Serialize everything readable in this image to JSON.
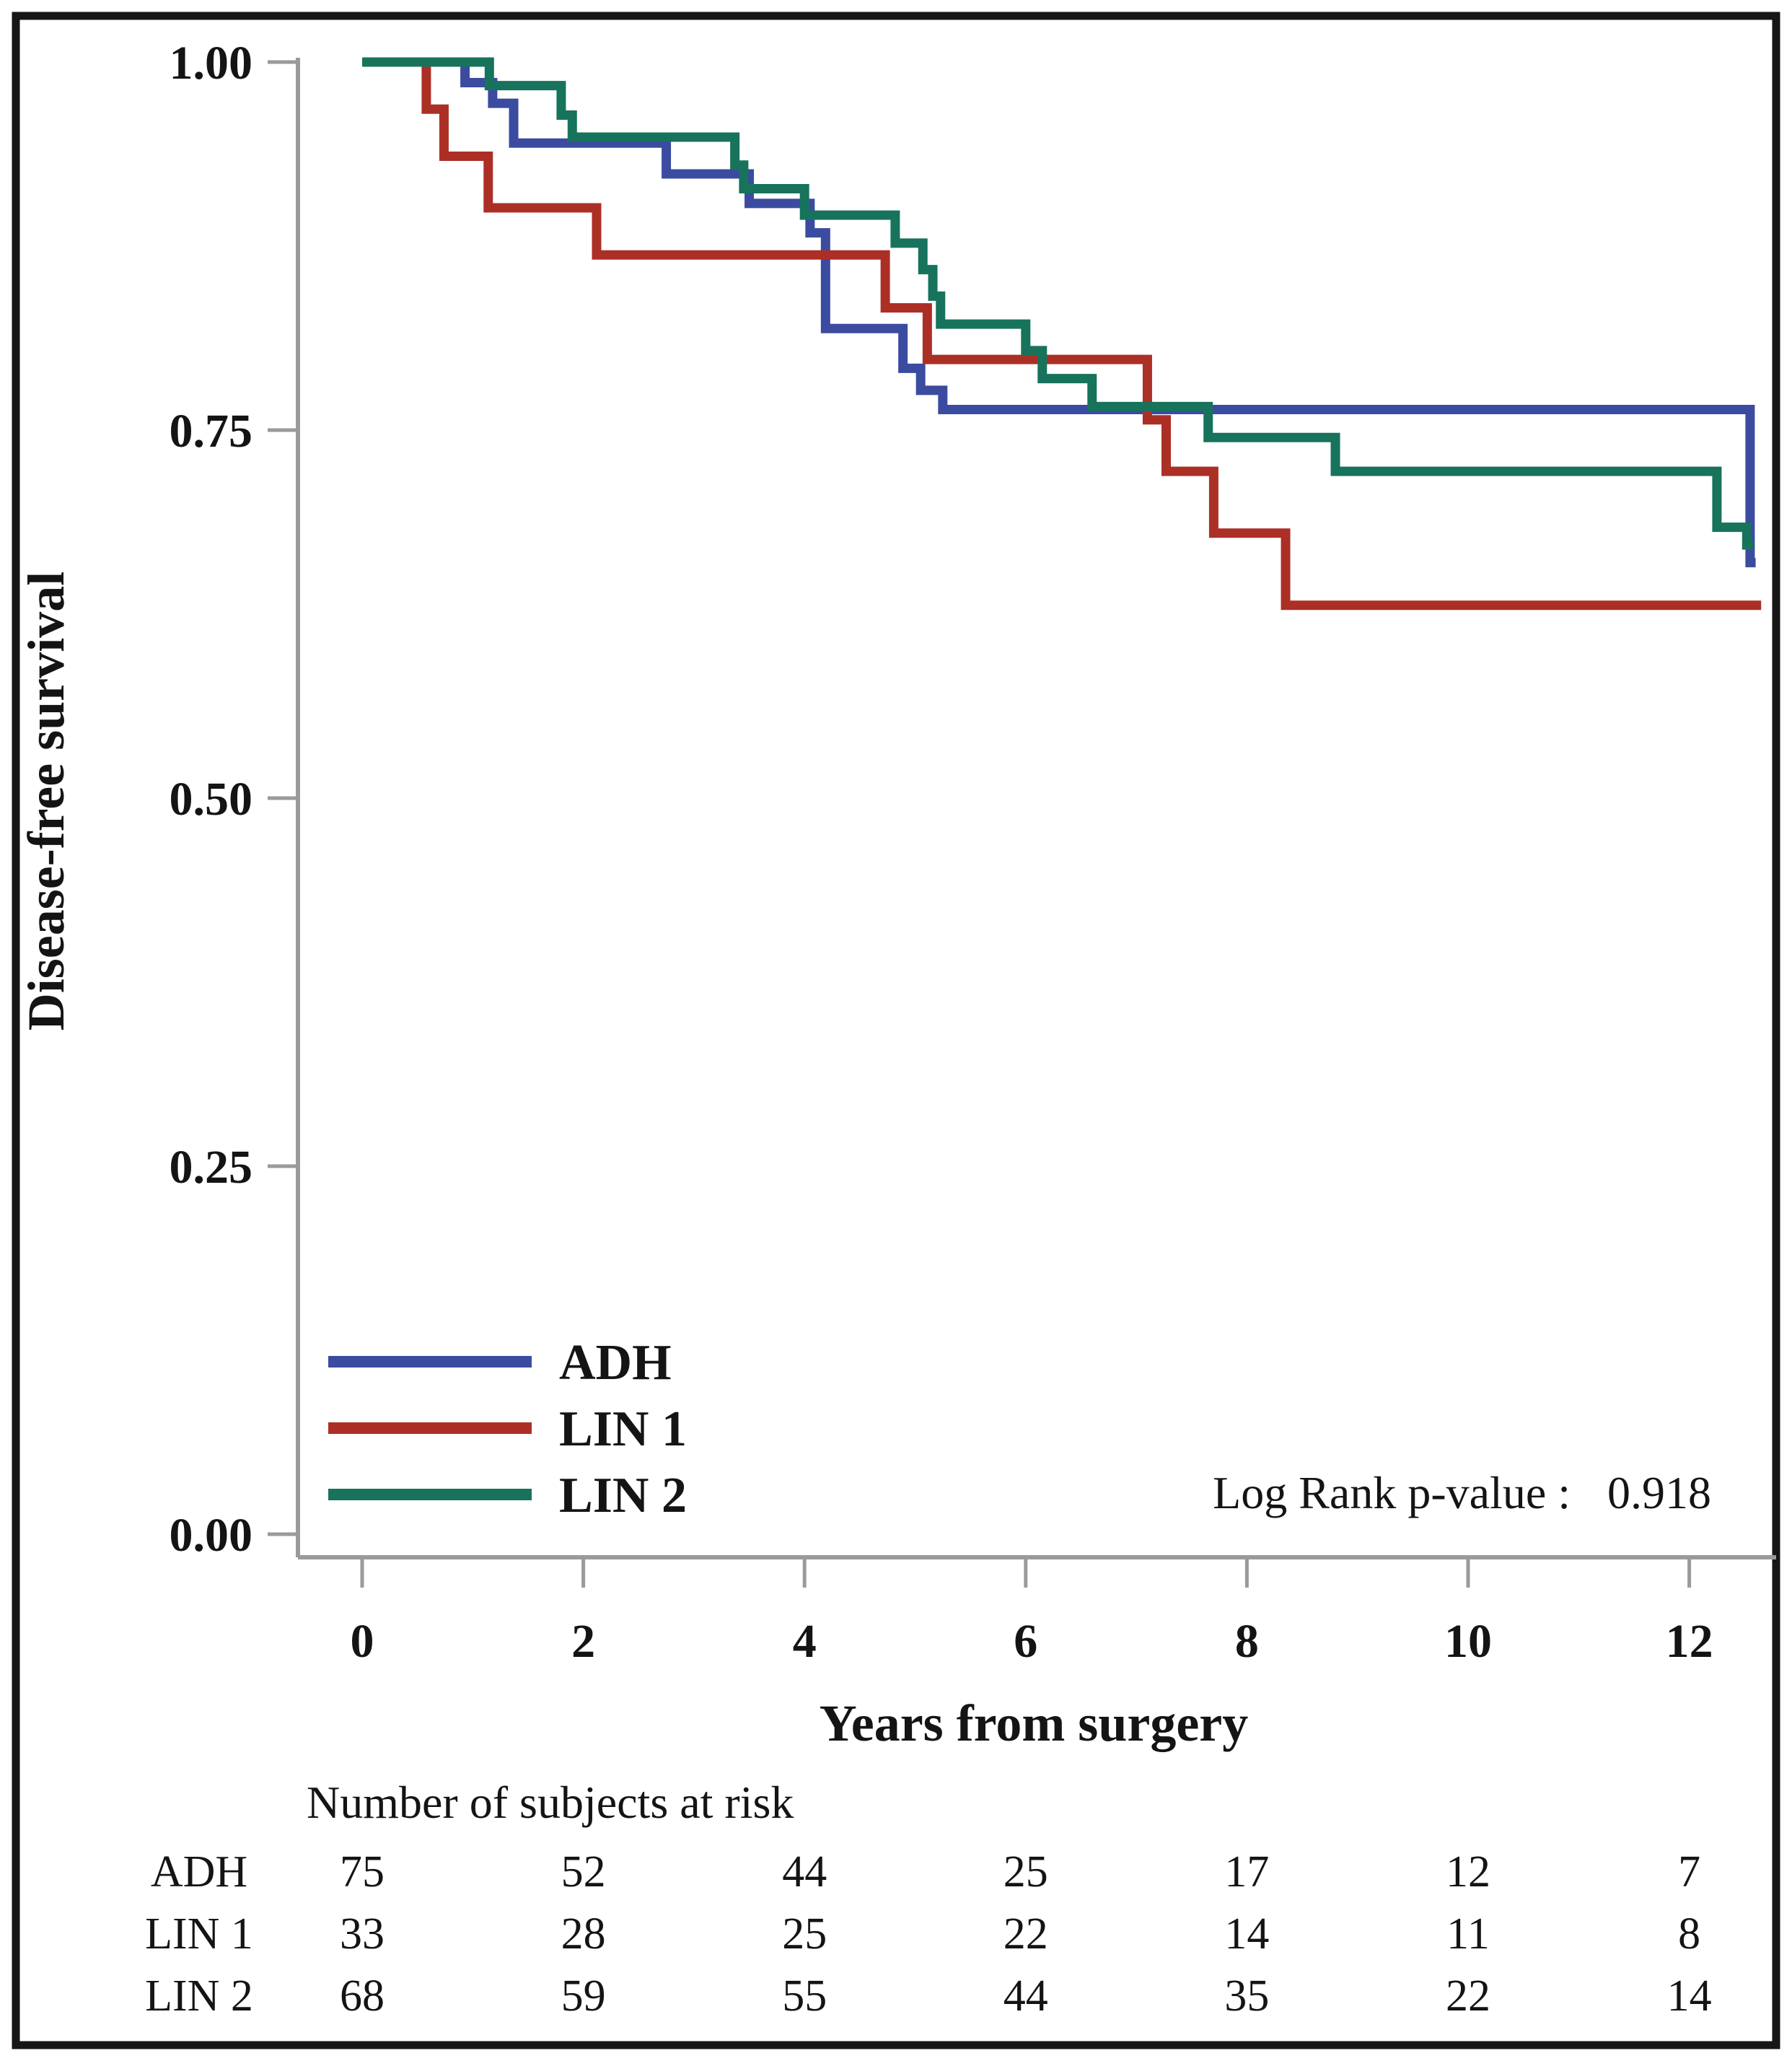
{
  "figure": {
    "background": "#ffffff",
    "frame_color": "#161616"
  },
  "chart_data": {
    "type": "line",
    "variant": "kaplan-meier-step",
    "title": "",
    "xlabel": "Years from surgery",
    "ylabel": "Disease-free survival",
    "x_ticks": [
      "0",
      "2",
      "4",
      "6",
      "8",
      "10",
      "12"
    ],
    "x_tick_values": [
      0,
      2,
      4,
      6,
      8,
      10,
      12
    ],
    "y_ticks": [
      "1.00",
      "0.75",
      "0.50",
      "0.25",
      "0.00"
    ],
    "y_tick_values": [
      1.0,
      0.75,
      0.5,
      0.25,
      0.0
    ],
    "xlim": [
      0,
      12.78
    ],
    "ylim": [
      0,
      1.02
    ],
    "grid": false,
    "legend_position": "inside bottom-left",
    "axis_color": "#9a9a9a",
    "text_color": "#141414",
    "annotation": {
      "label": "Log Rank p-value :",
      "value": "0.918"
    },
    "series": [
      {
        "name": "ADH",
        "color": "#3B4BA0",
        "end_time": 12.6,
        "steps": [
          [
            0,
            1.0
          ],
          [
            0.93,
            0.986
          ],
          [
            1.18,
            0.972
          ],
          [
            1.37,
            0.945
          ],
          [
            2.75,
            0.924
          ],
          [
            3.5,
            0.904
          ],
          [
            4.05,
            0.884
          ],
          [
            4.19,
            0.819
          ],
          [
            4.89,
            0.792
          ],
          [
            5.05,
            0.777
          ],
          [
            5.25,
            0.764
          ],
          [
            12.55,
            0.66
          ]
        ]
      },
      {
        "name": "LIN 1",
        "color": "#AC2F26",
        "end_time": 12.65,
        "steps": [
          [
            0,
            1.0
          ],
          [
            0.58,
            0.968
          ],
          [
            0.74,
            0.936
          ],
          [
            1.14,
            0.901
          ],
          [
            2.12,
            0.869
          ],
          [
            4.73,
            0.833
          ],
          [
            5.11,
            0.798
          ],
          [
            7.1,
            0.757
          ],
          [
            7.27,
            0.722
          ],
          [
            7.7,
            0.68
          ],
          [
            8.35,
            0.631
          ]
        ]
      },
      {
        "name": "LIN 2",
        "color": "#17735B",
        "end_time": 12.58,
        "steps": [
          [
            0,
            1.0
          ],
          [
            1.15,
            0.984
          ],
          [
            1.8,
            0.964
          ],
          [
            1.9,
            0.949
          ],
          [
            3.37,
            0.93
          ],
          [
            3.45,
            0.914
          ],
          [
            4.0,
            0.896
          ],
          [
            4.82,
            0.877
          ],
          [
            5.07,
            0.859
          ],
          [
            5.16,
            0.841
          ],
          [
            5.23,
            0.822
          ],
          [
            6.0,
            0.804
          ],
          [
            6.15,
            0.785
          ],
          [
            6.6,
            0.766
          ],
          [
            7.65,
            0.745
          ],
          [
            8.8,
            0.722
          ],
          [
            12.25,
            0.684
          ],
          [
            12.52,
            0.672
          ]
        ]
      }
    ],
    "risk_table": {
      "title": "Number of subjects at risk",
      "times": [
        0,
        2,
        4,
        6,
        8,
        10,
        12
      ],
      "rows": [
        {
          "label": "ADH",
          "counts": [
            "75",
            "52",
            "44",
            "25",
            "17",
            "12",
            "7"
          ]
        },
        {
          "label": "LIN 1",
          "counts": [
            "33",
            "28",
            "25",
            "22",
            "14",
            "11",
            "8"
          ]
        },
        {
          "label": "LIN 2",
          "counts": [
            "68",
            "59",
            "55",
            "44",
            "35",
            "22",
            "14"
          ]
        }
      ]
    }
  }
}
